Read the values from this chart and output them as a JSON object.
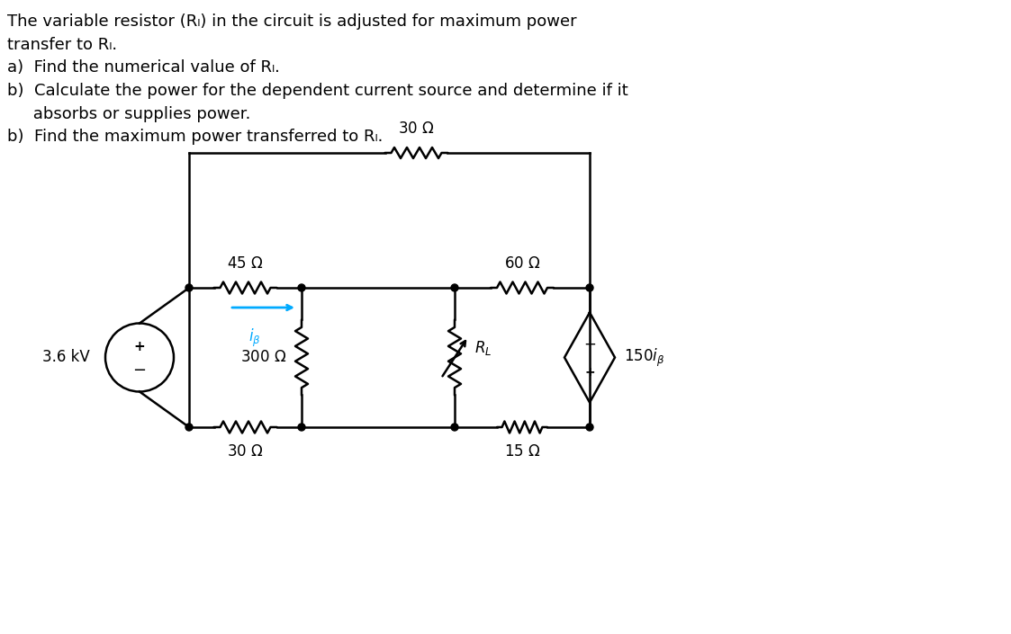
{
  "title_text": "The variable resistor (Rₗ) in the circuit is adjusted for maximum power\ntransfer to Rₗ.\na)  Find the numerical value of Rₗ.\nb)  Calculate the power for the dependent current source and determine if it\n     absorbs or supplies power.\nb)  Find the maximum power transferred to Rₗ.",
  "bg_color": "#ffffff",
  "line_color": "#000000",
  "node_color": "#000000",
  "cyan_color": "#00aaff",
  "font_size_text": 13.5,
  "font_size_label": 12,
  "font_family": "DejaVu Sans"
}
